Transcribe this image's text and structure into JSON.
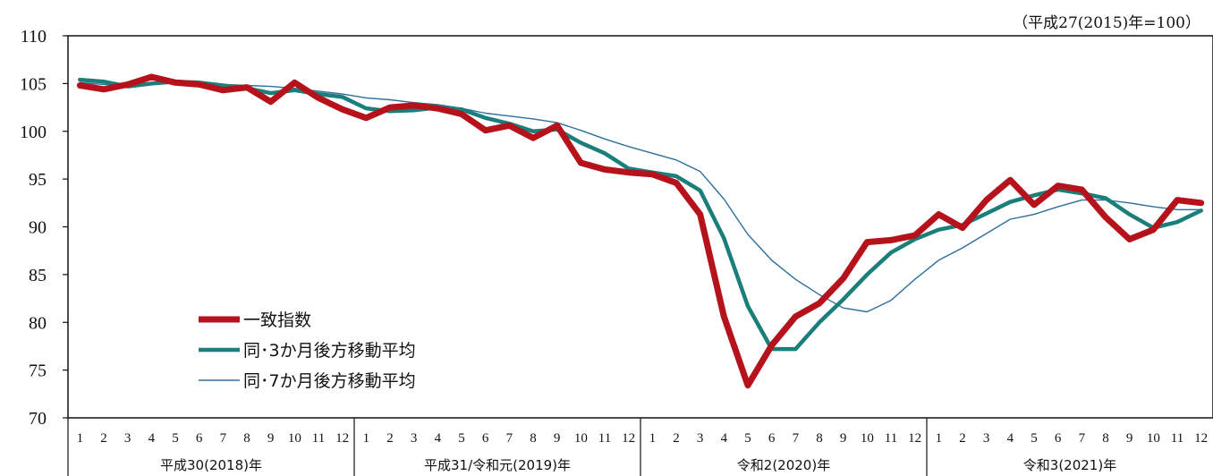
{
  "chart_data": {
    "type": "line",
    "note": "（平成27(2015)年=100）",
    "ylim": [
      70,
      110
    ],
    "yticks": [
      "70",
      "75",
      "80",
      "85",
      "90",
      "95",
      "100",
      "105",
      "110"
    ],
    "month_labels": [
      "1",
      "2",
      "3",
      "4",
      "5",
      "6",
      "7",
      "8",
      "9",
      "10",
      "11",
      "12"
    ],
    "groups": [
      {
        "label": "平成30(2018)年"
      },
      {
        "label": "平成31/令和元(2019)年"
      },
      {
        "label": "令和2(2020)年"
      },
      {
        "label": "令和3(2021)年"
      }
    ],
    "grid": false,
    "legend_position": "lower-left",
    "series": [
      {
        "name": "一致指数",
        "color": "#b5121b",
        "values": [
          104.8,
          104.4,
          104.9,
          105.7,
          105.1,
          104.9,
          104.3,
          104.6,
          103.1,
          105.1,
          103.5,
          102.3,
          101.4,
          102.5,
          102.7,
          102.4,
          101.8,
          100.1,
          100.6,
          99.3,
          100.6,
          96.7,
          96.0,
          95.7,
          95.5,
          94.6,
          91.3,
          80.6,
          73.4,
          77.6,
          80.6,
          82.0,
          84.6,
          88.4,
          88.6,
          89.1,
          91.3,
          89.9,
          92.8,
          94.9,
          92.3,
          94.3,
          93.9,
          91.0,
          88.7,
          89.7,
          92.8,
          92.5
        ]
      },
      {
        "name": "同･3か月後方移動平均",
        "color": "#1a7f7a",
        "values": [
          105.4,
          105.2,
          104.7,
          105.0,
          105.2,
          105.1,
          104.8,
          104.5,
          104.0,
          104.3,
          103.9,
          103.6,
          102.4,
          102.1,
          102.2,
          102.5,
          102.3,
          101.4,
          100.8,
          100.0,
          100.2,
          98.8,
          97.7,
          96.1,
          95.7,
          95.3,
          93.8,
          88.8,
          81.7,
          77.2,
          77.2,
          80.0,
          82.4,
          85.0,
          87.3,
          88.7,
          89.7,
          90.2,
          91.4,
          92.6,
          93.3,
          93.9,
          93.5,
          93.0,
          91.3,
          89.9,
          90.5,
          91.7
        ]
      },
      {
        "name": "同･7か月後方移動平均",
        "color": "#2e6f9e",
        "values": [
          105.1,
          104.9,
          104.9,
          105.0,
          105.1,
          105.2,
          104.9,
          104.8,
          104.7,
          104.5,
          104.2,
          103.9,
          103.5,
          103.3,
          103.0,
          102.8,
          102.4,
          101.9,
          101.6,
          101.3,
          100.9,
          100.1,
          99.2,
          98.4,
          97.7,
          97.0,
          95.8,
          92.9,
          89.2,
          86.5,
          84.5,
          82.9,
          81.5,
          81.1,
          82.3,
          84.5,
          86.5,
          87.8,
          89.3,
          90.8,
          91.3,
          92.1,
          92.8,
          92.8,
          92.5,
          92.1,
          91.8,
          91.8
        ]
      }
    ]
  }
}
